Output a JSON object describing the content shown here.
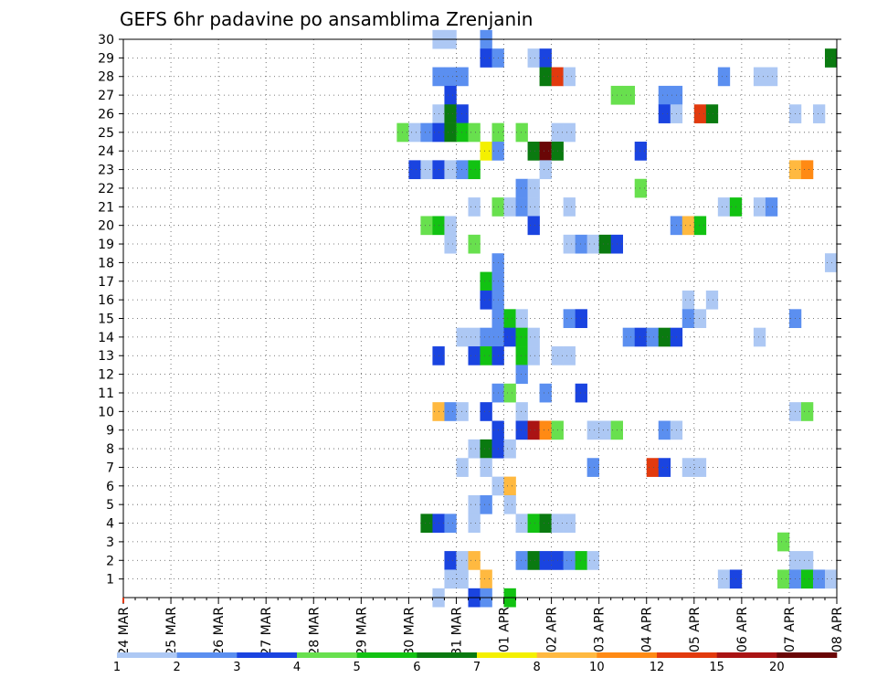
{
  "chart_data": {
    "type": "heatmap",
    "title": "GEFS 6hr padavine po ansamblima Zrenjanin",
    "xlabel": "",
    "ylabel": "",
    "x_unit": "6-hour steps from 24 MAR 00Z",
    "xlim": [
      0,
      59
    ],
    "ylim": [
      0,
      30
    ],
    "y_ticks": [
      1,
      2,
      3,
      4,
      5,
      6,
      7,
      8,
      9,
      10,
      11,
      12,
      13,
      14,
      15,
      16,
      17,
      18,
      19,
      20,
      21,
      22,
      23,
      24,
      25,
      26,
      27,
      28,
      29,
      30
    ],
    "x_ticks": [
      {
        "step": 0,
        "label": "24 MAR"
      },
      {
        "step": 4,
        "label": "25 MAR"
      },
      {
        "step": 8,
        "label": "26 MAR"
      },
      {
        "step": 12,
        "label": "27 MAR"
      },
      {
        "step": 16,
        "label": "28 MAR"
      },
      {
        "step": 20,
        "label": "29 MAR"
      },
      {
        "step": 24,
        "label": "30 MAR"
      },
      {
        "step": 28,
        "label": "31 MAR"
      },
      {
        "step": 32,
        "label": "01 APR"
      },
      {
        "step": 36,
        "label": "02 APR"
      },
      {
        "step": 40,
        "label": "03 APR"
      },
      {
        "step": 44,
        "label": "04 APR"
      },
      {
        "step": 48,
        "label": "05 APR"
      },
      {
        "step": 52,
        "label": "06 APR"
      },
      {
        "step": 56,
        "label": "07 APR"
      },
      {
        "step": 60,
        "label": "08 APR"
      }
    ],
    "grid": true,
    "legend": {
      "position": "bottom",
      "labels": [
        "1",
        "2",
        "3",
        "4",
        "5",
        "6",
        "7",
        "8",
        "10",
        "12",
        "15",
        "20"
      ],
      "colors": [
        "#adc8f4",
        "#5b8ff0",
        "#1a44e0",
        "#68e04e",
        "#12c212",
        "#0a7a10",
        "#f4f000",
        "#ffb940",
        "#ff8a14",
        "#e23a0e",
        "#aa1414",
        "#6a0606"
      ]
    },
    "cells": [
      [
        26.5,
        30,
        0
      ],
      [
        27.5,
        30,
        0
      ],
      [
        30.5,
        30,
        1
      ],
      [
        30.5,
        29,
        2
      ],
      [
        31.5,
        29,
        1
      ],
      [
        34.5,
        29,
        0
      ],
      [
        35.5,
        29,
        2
      ],
      [
        59.5,
        29,
        5
      ],
      [
        26.5,
        28,
        1
      ],
      [
        27.5,
        28,
        1
      ],
      [
        28.5,
        28,
        1
      ],
      [
        35.5,
        28,
        5
      ],
      [
        36.5,
        28,
        9
      ],
      [
        37.5,
        28,
        0
      ],
      [
        50.5,
        28,
        1
      ],
      [
        53.5,
        28,
        0
      ],
      [
        54.5,
        28,
        0
      ],
      [
        27.5,
        27,
        2
      ],
      [
        41.5,
        27,
        3
      ],
      [
        42.5,
        27,
        3
      ],
      [
        45.5,
        27,
        1
      ],
      [
        46.5,
        27,
        1
      ],
      [
        26.5,
        26,
        0
      ],
      [
        27.5,
        26,
        5
      ],
      [
        28.5,
        26,
        2
      ],
      [
        45.5,
        26,
        2
      ],
      [
        46.5,
        26,
        0
      ],
      [
        48.5,
        26,
        9
      ],
      [
        49.5,
        26,
        5
      ],
      [
        56.5,
        26,
        0
      ],
      [
        58.5,
        26,
        0
      ],
      [
        23.5,
        25,
        3
      ],
      [
        24.5,
        25,
        0
      ],
      [
        25.5,
        25,
        1
      ],
      [
        26.5,
        25,
        2
      ],
      [
        27.5,
        25,
        5
      ],
      [
        28.5,
        25,
        4
      ],
      [
        29.5,
        25,
        3
      ],
      [
        31.5,
        25,
        3
      ],
      [
        33.5,
        25,
        3
      ],
      [
        36.5,
        25,
        0
      ],
      [
        37.5,
        25,
        0
      ],
      [
        30.5,
        24,
        6
      ],
      [
        31.5,
        24,
        1
      ],
      [
        34.5,
        24,
        5
      ],
      [
        35.5,
        24,
        11
      ],
      [
        36.5,
        24,
        5
      ],
      [
        43.5,
        24,
        2
      ],
      [
        24.5,
        23,
        2
      ],
      [
        25.5,
        23,
        0
      ],
      [
        26.5,
        23,
        2
      ],
      [
        27.5,
        23,
        0
      ],
      [
        28.5,
        23,
        1
      ],
      [
        29.5,
        23,
        4
      ],
      [
        35.5,
        23,
        0
      ],
      [
        56.5,
        23,
        7
      ],
      [
        57.5,
        23,
        8
      ],
      [
        33.5,
        22,
        1
      ],
      [
        34.5,
        22,
        0
      ],
      [
        43.5,
        22,
        3
      ],
      [
        29.5,
        21,
        0
      ],
      [
        31.5,
        21,
        3
      ],
      [
        32.5,
        21,
        0
      ],
      [
        33.5,
        21,
        1
      ],
      [
        34.5,
        21,
        0
      ],
      [
        37.5,
        21,
        0
      ],
      [
        50.5,
        21,
        0
      ],
      [
        51.5,
        21,
        4
      ],
      [
        53.5,
        21,
        0
      ],
      [
        54.5,
        21,
        1
      ],
      [
        25.5,
        20,
        3
      ],
      [
        26.5,
        20,
        4
      ],
      [
        27.5,
        20,
        0
      ],
      [
        34.5,
        20,
        2
      ],
      [
        46.5,
        20,
        1
      ],
      [
        47.5,
        20,
        7
      ],
      [
        48.5,
        20,
        4
      ],
      [
        27.5,
        19,
        0
      ],
      [
        29.5,
        19,
        3
      ],
      [
        37.5,
        19,
        0
      ],
      [
        38.5,
        19,
        1
      ],
      [
        39.5,
        19,
        0
      ],
      [
        40.5,
        19,
        5
      ],
      [
        41.5,
        19,
        2
      ],
      [
        31.5,
        18,
        1
      ],
      [
        59.5,
        18,
        0
      ],
      [
        30.5,
        17,
        4
      ],
      [
        31.5,
        17,
        1
      ],
      [
        30.5,
        16,
        2
      ],
      [
        31.5,
        16,
        1
      ],
      [
        47.5,
        16,
        0
      ],
      [
        49.5,
        16,
        0
      ],
      [
        31.5,
        15,
        1
      ],
      [
        32.5,
        15,
        4
      ],
      [
        33.5,
        15,
        0
      ],
      [
        37.5,
        15,
        1
      ],
      [
        38.5,
        15,
        2
      ],
      [
        47.5,
        15,
        1
      ],
      [
        48.5,
        15,
        0
      ],
      [
        56.5,
        15,
        1
      ],
      [
        28.5,
        14,
        0
      ],
      [
        29.5,
        14,
        0
      ],
      [
        30.5,
        14,
        1
      ],
      [
        31.5,
        14,
        1
      ],
      [
        32.5,
        14,
        2
      ],
      [
        33.5,
        14,
        4
      ],
      [
        34.5,
        14,
        0
      ],
      [
        42.5,
        14,
        1
      ],
      [
        43.5,
        14,
        2
      ],
      [
        44.5,
        14,
        1
      ],
      [
        45.5,
        14,
        5
      ],
      [
        46.5,
        14,
        2
      ],
      [
        53.5,
        14,
        0
      ],
      [
        26.5,
        13,
        2
      ],
      [
        29.5,
        13,
        2
      ],
      [
        30.5,
        13,
        4
      ],
      [
        31.5,
        13,
        2
      ],
      [
        33.5,
        13,
        4
      ],
      [
        34.5,
        13,
        0
      ],
      [
        36.5,
        13,
        0
      ],
      [
        37.5,
        13,
        0
      ],
      [
        33.5,
        12,
        1
      ],
      [
        31.5,
        11,
        1
      ],
      [
        32.5,
        11,
        3
      ],
      [
        35.5,
        11,
        1
      ],
      [
        38.5,
        11,
        2
      ],
      [
        26.5,
        10,
        7
      ],
      [
        27.5,
        10,
        1
      ],
      [
        28.5,
        10,
        0
      ],
      [
        30.5,
        10,
        2
      ],
      [
        33.5,
        10,
        0
      ],
      [
        56.5,
        10,
        0
      ],
      [
        57.5,
        10,
        3
      ],
      [
        31.5,
        9,
        2
      ],
      [
        33.5,
        9,
        2
      ],
      [
        34.5,
        9,
        10
      ],
      [
        35.5,
        9,
        8
      ],
      [
        36.5,
        9,
        3
      ],
      [
        39.5,
        9,
        0
      ],
      [
        40.5,
        9,
        0
      ],
      [
        41.5,
        9,
        3
      ],
      [
        45.5,
        9,
        1
      ],
      [
        46.5,
        9,
        0
      ],
      [
        29.5,
        8,
        0
      ],
      [
        30.5,
        8,
        5
      ],
      [
        31.5,
        8,
        2
      ],
      [
        32.5,
        8,
        0
      ],
      [
        28.5,
        7,
        0
      ],
      [
        30.5,
        7,
        0
      ],
      [
        39.5,
        7,
        1
      ],
      [
        44.5,
        7,
        9
      ],
      [
        45.5,
        7,
        2
      ],
      [
        47.5,
        7,
        0
      ],
      [
        48.5,
        7,
        0
      ],
      [
        31.5,
        6,
        0
      ],
      [
        32.5,
        6,
        7
      ],
      [
        29.5,
        5,
        0
      ],
      [
        30.5,
        5,
        1
      ],
      [
        32.5,
        5,
        0
      ],
      [
        25.5,
        4,
        5
      ],
      [
        26.5,
        4,
        2
      ],
      [
        27.5,
        4,
        1
      ],
      [
        29.5,
        4,
        0
      ],
      [
        33.5,
        4,
        0
      ],
      [
        34.5,
        4,
        4
      ],
      [
        35.5,
        4,
        5
      ],
      [
        36.5,
        4,
        0
      ],
      [
        37.5,
        4,
        0
      ],
      [
        55.5,
        3,
        3
      ],
      [
        27.5,
        2,
        2
      ],
      [
        28.5,
        2,
        0
      ],
      [
        29.5,
        2,
        7
      ],
      [
        33.5,
        2,
        1
      ],
      [
        34.5,
        2,
        5
      ],
      [
        35.5,
        2,
        2
      ],
      [
        36.5,
        2,
        2
      ],
      [
        37.5,
        2,
        1
      ],
      [
        38.5,
        2,
        4
      ],
      [
        39.5,
        2,
        0
      ],
      [
        56.5,
        2,
        0
      ],
      [
        57.5,
        2,
        0
      ],
      [
        27.5,
        1,
        0
      ],
      [
        28.5,
        1,
        0
      ],
      [
        30.5,
        1,
        7
      ],
      [
        50.5,
        1,
        0
      ],
      [
        51.5,
        1,
        2
      ],
      [
        55.5,
        1,
        3
      ],
      [
        56.5,
        1,
        1
      ],
      [
        57.5,
        1,
        4
      ],
      [
        58.5,
        1,
        1
      ],
      [
        59.5,
        1,
        0
      ],
      [
        26.5,
        0,
        0
      ],
      [
        29.5,
        0,
        2
      ],
      [
        30.5,
        0,
        1
      ],
      [
        32.5,
        0,
        4
      ]
    ]
  }
}
